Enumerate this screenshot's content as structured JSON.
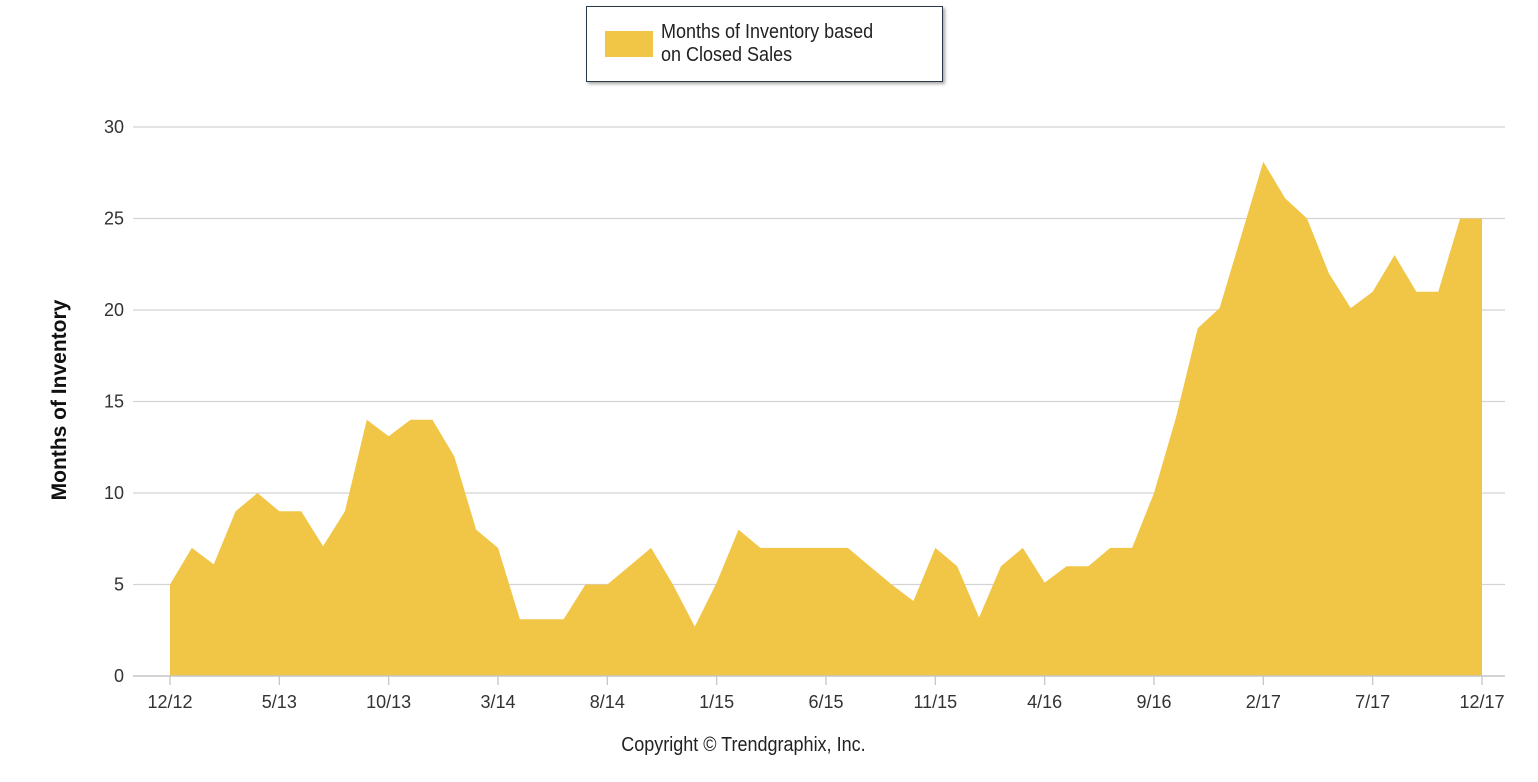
{
  "chart_data": {
    "type": "area",
    "title": "",
    "xlabel": "",
    "ylabel": "Months of Inventory",
    "ylim": [
      0,
      30
    ],
    "yticks": [
      0,
      5,
      10,
      15,
      20,
      25,
      30
    ],
    "grid": true,
    "legend_position": "top-center",
    "x_tick_labels": [
      "12/12",
      "5/13",
      "10/13",
      "3/14",
      "8/14",
      "1/15",
      "6/15",
      "11/15",
      "4/16",
      "9/16",
      "2/17",
      "7/17",
      "12/17"
    ],
    "x": [
      "12/12",
      "1/13",
      "2/13",
      "3/13",
      "4/13",
      "5/13",
      "6/13",
      "7/13",
      "8/13",
      "9/13",
      "10/13",
      "11/13",
      "12/13",
      "1/14",
      "2/14",
      "3/14",
      "4/14",
      "5/14",
      "6/14",
      "7/14",
      "8/14",
      "9/14",
      "10/14",
      "11/14",
      "12/14",
      "1/15",
      "2/15",
      "3/15",
      "4/15",
      "5/15",
      "6/15",
      "7/15",
      "8/15",
      "9/15",
      "10/15",
      "11/15",
      "12/15",
      "1/16",
      "2/16",
      "3/16",
      "4/16",
      "5/16",
      "6/16",
      "7/16",
      "8/16",
      "9/16",
      "10/16",
      "11/16",
      "12/16",
      "1/17",
      "2/17",
      "3/17",
      "4/17",
      "5/17",
      "6/17",
      "7/17",
      "8/17",
      "9/17",
      "10/17",
      "11/17",
      "12/17"
    ],
    "series": [
      {
        "name": "Months of Inventory based on Closed Sales",
        "color": "#f1c546",
        "values": [
          5.0,
          7.0,
          6.1,
          9.0,
          10.0,
          9.0,
          9.0,
          7.1,
          9.0,
          14.0,
          13.1,
          14.0,
          14.0,
          12.0,
          8.0,
          7.0,
          3.1,
          3.1,
          3.1,
          5.0,
          5.0,
          6.0,
          7.0,
          5.0,
          2.7,
          5.1,
          8.0,
          7.0,
          7.0,
          7.0,
          7.0,
          7.0,
          6.0,
          5.0,
          4.1,
          7.0,
          6.0,
          3.2,
          6.0,
          7.0,
          5.1,
          6.0,
          6.0,
          7.0,
          7.0,
          10.0,
          14.1,
          19.0,
          20.1,
          24.1,
          28.1,
          26.1,
          25.0,
          22.0,
          20.1,
          21.0,
          23.0,
          21.0,
          21.0,
          25.0,
          25.0
        ]
      }
    ]
  },
  "legend": {
    "line1": "Months of Inventory based",
    "line2": "on Closed Sales",
    "color": "#f1c546"
  },
  "copyright": "Copyright © Trendgraphix, Inc."
}
